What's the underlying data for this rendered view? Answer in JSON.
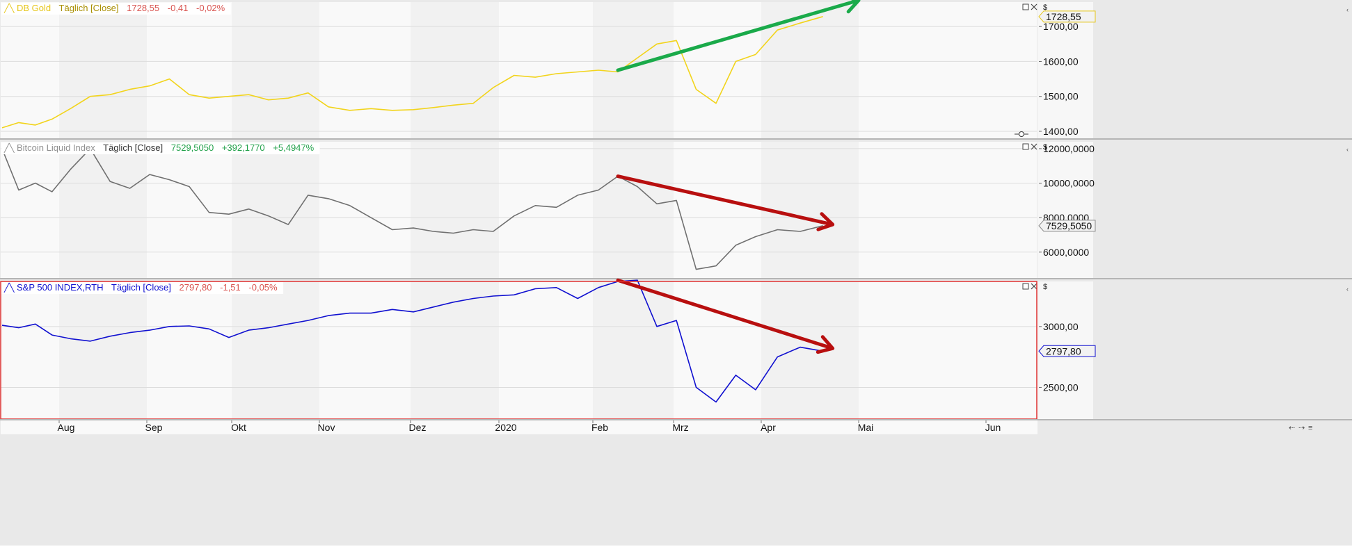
{
  "panels": [
    {
      "id": "gold",
      "label": "DB Gold",
      "mode": "Täglich [Close]",
      "last": "1728,55",
      "change": "-0,41",
      "pct": "-0,02%",
      "ticks": [
        "1400,00",
        "1500,00",
        "1600,00",
        "1700,00"
      ],
      "tick_values": [
        1400,
        1500,
        1600,
        1700
      ],
      "price_badge": "1728,55",
      "currency": "$",
      "colors": {
        "line": "#f2d41c",
        "label": "#e6c619",
        "mode": "#a98f00",
        "values": "#d9534f",
        "badge_border": "#e6c619"
      }
    },
    {
      "id": "btc",
      "label": "Bitcoin Liquid Index",
      "mode": "Täglich [Close]",
      "last": "7529,5050",
      "change": "+392,1770",
      "pct": "+5,4947%",
      "ticks": [
        "6000,0000",
        "8000,0000",
        "10000,0000",
        "12000,0000"
      ],
      "tick_values": [
        6000,
        8000,
        10000,
        12000
      ],
      "price_badge": "7529,5050",
      "currency": "$",
      "colors": {
        "line": "#707070",
        "label": "#909090",
        "mode": "#333333",
        "values": "#22a14a",
        "badge_border": "#8a8a8a"
      }
    },
    {
      "id": "spx",
      "label": "S&P 500 INDEX,RTH",
      "mode": "Täglich [Close]",
      "last": "2797,80",
      "change": "-1,51",
      "pct": "-0,05%",
      "ticks": [
        "2500,00",
        "3000,00"
      ],
      "tick_values": [
        2500,
        3000
      ],
      "price_badge": "2797,80",
      "currency": "$",
      "colors": {
        "line": "#1010d0",
        "label": "#1010d0",
        "mode": "#1010d0",
        "values": "#d9534f",
        "badge_border": "#1010d0"
      }
    }
  ],
  "time_axis": {
    "labels": [
      "Aug",
      "Sep",
      "Okt",
      "Nov",
      "Dez",
      "2020",
      "Feb",
      "Mrz",
      "Apr",
      "Mai",
      "Jun"
    ]
  },
  "chart_data": [
    {
      "type": "line",
      "title": "DB Gold Täglich [Close]",
      "x_range": [
        "2019-07-08",
        "2020-06-19"
      ],
      "ylim": [
        1380,
        1770
      ],
      "x": [
        "2019-07-08",
        "2019-07-15",
        "2019-07-22",
        "2019-07-29",
        "2019-08-05",
        "2019-08-12",
        "2019-08-19",
        "2019-08-26",
        "2019-09-02",
        "2019-09-09",
        "2019-09-16",
        "2019-09-23",
        "2019-09-30",
        "2019-10-07",
        "2019-10-14",
        "2019-10-21",
        "2019-10-28",
        "2019-11-04",
        "2019-11-11",
        "2019-11-18",
        "2019-11-25",
        "2019-12-02",
        "2019-12-09",
        "2019-12-16",
        "2019-12-23",
        "2019-12-30",
        "2020-01-06",
        "2020-01-13",
        "2020-01-20",
        "2020-01-27",
        "2020-02-03",
        "2020-02-10",
        "2020-02-17",
        "2020-02-24",
        "2020-03-02",
        "2020-03-09",
        "2020-03-16",
        "2020-03-23",
        "2020-03-30",
        "2020-04-06",
        "2020-04-13",
        "2020-04-20"
      ],
      "series": [
        {
          "name": "DB Gold",
          "values": [
            1410,
            1425,
            1418,
            1435,
            1465,
            1500,
            1505,
            1520,
            1530,
            1550,
            1505,
            1495,
            1500,
            1505,
            1490,
            1495,
            1510,
            1470,
            1460,
            1465,
            1460,
            1462,
            1468,
            1475,
            1480,
            1525,
            1560,
            1555,
            1565,
            1570,
            1575,
            1570,
            1610,
            1650,
            1660,
            1520,
            1480,
            1600,
            1620,
            1690,
            1710,
            1728.55
          ]
        }
      ],
      "annotations": [
        {
          "type": "arrow",
          "color": "#1aaa4a",
          "direction": "up",
          "from": [
            "2020-02-10",
            1575
          ],
          "to": [
            "2020-05-01",
            1775
          ]
        }
      ]
    },
    {
      "type": "line",
      "title": "Bitcoin Liquid Index Täglich [Close]",
      "x_range": [
        "2019-07-08",
        "2020-06-19"
      ],
      "ylim": [
        4500,
        12400
      ],
      "x": [
        "2019-07-08",
        "2019-07-15",
        "2019-07-22",
        "2019-07-29",
        "2019-08-05",
        "2019-08-12",
        "2019-08-19",
        "2019-08-26",
        "2019-09-02",
        "2019-09-09",
        "2019-09-16",
        "2019-09-23",
        "2019-09-30",
        "2019-10-07",
        "2019-10-14",
        "2019-10-21",
        "2019-10-28",
        "2019-11-04",
        "2019-11-11",
        "2019-11-18",
        "2019-11-25",
        "2019-12-02",
        "2019-12-09",
        "2019-12-16",
        "2019-12-23",
        "2019-12-30",
        "2020-01-06",
        "2020-01-13",
        "2020-01-20",
        "2020-01-27",
        "2020-02-03",
        "2020-02-10",
        "2020-02-17",
        "2020-02-24",
        "2020-03-02",
        "2020-03-09",
        "2020-03-16",
        "2020-03-23",
        "2020-03-30",
        "2020-04-06",
        "2020-04-13",
        "2020-04-20"
      ],
      "series": [
        {
          "name": "Bitcoin Liquid Index",
          "values": [
            12000,
            9600,
            10000,
            9500,
            10800,
            12000,
            10100,
            9700,
            10500,
            10200,
            9800,
            8300,
            8200,
            8500,
            8100,
            7600,
            9300,
            9100,
            8700,
            8000,
            7300,
            7400,
            7200,
            7100,
            7300,
            7200,
            8100,
            8700,
            8600,
            9300,
            9600,
            10400,
            9800,
            8800,
            9000,
            5000,
            5200,
            6400,
            6900,
            7300,
            7200,
            7529.5
          ]
        }
      ],
      "annotations": [
        {
          "type": "arrow",
          "color": "#b80f0f",
          "direction": "down",
          "from": [
            "2020-02-10",
            10400
          ],
          "to": [
            "2020-04-23",
            7600
          ]
        }
      ]
    },
    {
      "type": "line",
      "title": "S&P 500 INDEX,RTH Täglich [Close]",
      "x_range": [
        "2019-07-08",
        "2020-06-19"
      ],
      "ylim": [
        2240,
        3370
      ],
      "x": [
        "2019-07-08",
        "2019-07-15",
        "2019-07-22",
        "2019-07-29",
        "2019-08-05",
        "2019-08-12",
        "2019-08-19",
        "2019-08-26",
        "2019-09-02",
        "2019-09-09",
        "2019-09-16",
        "2019-09-23",
        "2019-09-30",
        "2019-10-07",
        "2019-10-14",
        "2019-10-21",
        "2019-10-28",
        "2019-11-04",
        "2019-11-11",
        "2019-11-18",
        "2019-11-25",
        "2019-12-02",
        "2019-12-09",
        "2019-12-16",
        "2019-12-23",
        "2019-12-30",
        "2020-01-06",
        "2020-01-13",
        "2020-01-20",
        "2020-01-27",
        "2020-02-03",
        "2020-02-10",
        "2020-02-17",
        "2020-02-24",
        "2020-03-02",
        "2020-03-09",
        "2020-03-16",
        "2020-03-23",
        "2020-03-30",
        "2020-04-06",
        "2020-04-13",
        "2020-04-20"
      ],
      "series": [
        {
          "name": "S&P 500 INDEX,RTH",
          "values": [
            3010,
            2990,
            3020,
            2930,
            2900,
            2880,
            2920,
            2950,
            2970,
            3000,
            3005,
            2980,
            2910,
            2970,
            2990,
            3020,
            3050,
            3090,
            3110,
            3110,
            3140,
            3120,
            3160,
            3200,
            3230,
            3250,
            3260,
            3310,
            3320,
            3230,
            3320,
            3370,
            3380,
            3000,
            3050,
            2500,
            2380,
            2600,
            2480,
            2750,
            2830,
            2797.8
          ]
        }
      ],
      "annotations": [
        {
          "type": "arrow",
          "color": "#b80f0f",
          "direction": "down",
          "from": [
            "2020-02-10",
            3380
          ],
          "to": [
            "2020-04-23",
            2820
          ]
        }
      ]
    }
  ]
}
